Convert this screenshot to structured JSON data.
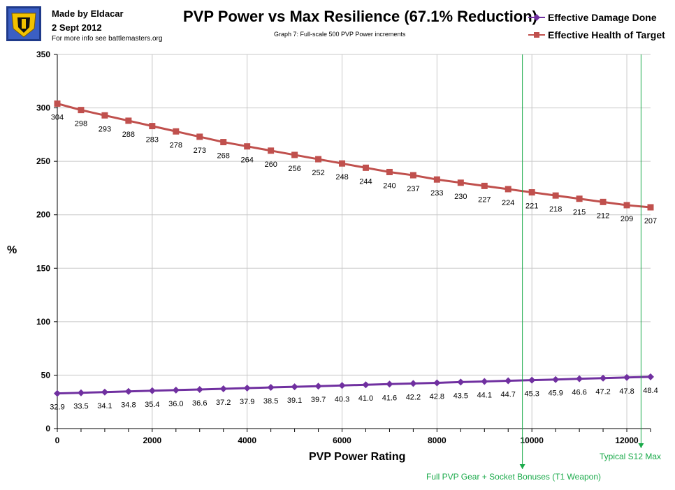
{
  "header": {
    "author": "Made by Eldacar",
    "date": "2 Sept 2012",
    "info": "For more info see battlemasters.org"
  },
  "chart_data": {
    "type": "line",
    "title": "PVP Power vs Max Resilience (67.1% Reduction)",
    "subtitle": "Graph 7:  Full-scale 500 PVP Power increments",
    "xlabel": "PVP Power Rating",
    "ylabel": "%",
    "xlim": [
      0,
      12500
    ],
    "ylim": [
      0,
      350
    ],
    "x_ticks": [
      0,
      2000,
      4000,
      6000,
      8000,
      10000,
      12000
    ],
    "y_ticks": [
      0,
      50,
      100,
      150,
      200,
      250,
      300,
      350
    ],
    "grid": true,
    "legend_position": "top-right",
    "x": [
      0,
      500,
      1000,
      1500,
      2000,
      2500,
      3000,
      3500,
      4000,
      4500,
      5000,
      5500,
      6000,
      6500,
      7000,
      7500,
      8000,
      8500,
      9000,
      9500,
      10000,
      10500,
      11000,
      11500,
      12000,
      12500
    ],
    "series": [
      {
        "name": "Effective Damage Done",
        "color": "#7030a0",
        "marker": "diamond",
        "values": [
          32.9,
          33.5,
          34.1,
          34.8,
          35.4,
          36.0,
          36.6,
          37.2,
          37.9,
          38.5,
          39.1,
          39.7,
          40.3,
          41.0,
          41.6,
          42.2,
          42.8,
          43.5,
          44.1,
          44.7,
          45.3,
          45.9,
          46.6,
          47.2,
          47.8,
          48.4
        ],
        "labels": [
          "32.9",
          "33.5",
          "34.1",
          "34.8",
          "35.4",
          "36.0",
          "36.6",
          "37.2",
          "37.9",
          "38.5",
          "39.1",
          "39.7",
          "40.3",
          "41.0",
          "41.6",
          "42.2",
          "42.8",
          "43.5",
          "44.1",
          "44.7",
          "45.3",
          "45.9",
          "46.6",
          "47.2",
          "47.8",
          "48.4"
        ]
      },
      {
        "name": "Effective Health of Target",
        "color": "#c0504d",
        "marker": "square",
        "values": [
          304,
          298,
          293,
          288,
          283,
          278,
          273,
          268,
          264,
          260,
          256,
          252,
          248,
          244,
          240,
          237,
          233,
          230,
          227,
          224,
          221,
          218,
          215,
          212,
          209,
          207
        ],
        "labels": [
          "304",
          "298",
          "293",
          "288",
          "283",
          "278",
          "273",
          "268",
          "264",
          "260",
          "256",
          "252",
          "248",
          "244",
          "240",
          "237",
          "233",
          "230",
          "227",
          "224",
          "221",
          "218",
          "215",
          "212",
          "209",
          "207"
        ]
      }
    ],
    "annotations": [
      {
        "x": 9800,
        "text": "Full PVP Gear + Socket Bonuses (T1 Weapon)",
        "color": "#1aaa4a"
      },
      {
        "x": 12300,
        "text": "Typical S12 Max",
        "color": "#1aaa4a"
      }
    ]
  }
}
